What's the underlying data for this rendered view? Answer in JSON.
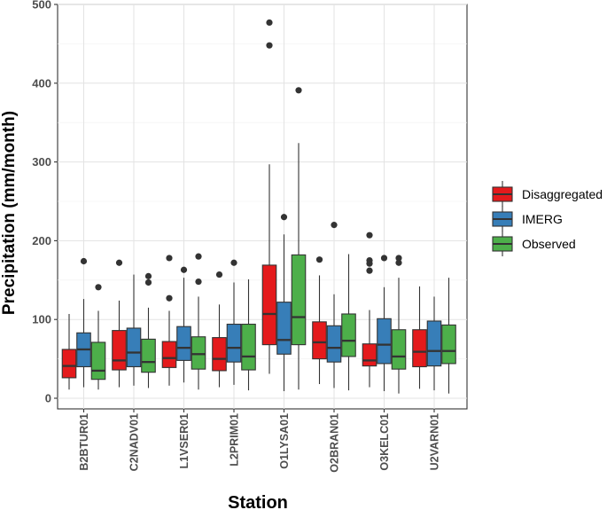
{
  "chart_data": {
    "type": "boxplot",
    "xlabel": "Station",
    "ylabel": "Precipitation (mm/month)",
    "ylim": [
      0,
      500
    ],
    "yticks": [
      0,
      100,
      200,
      300,
      400,
      500
    ],
    "categories": [
      "B2BTUR01",
      "C2NADV01",
      "L1VSER01",
      "L2PRIM01",
      "O1LYSA01",
      "O2BRAN01",
      "O3KELC01",
      "U2VARN01"
    ],
    "legend_position": "right",
    "series": [
      {
        "name": "Disaggregated",
        "color": "#e41a1c",
        "boxes": [
          {
            "low": 11,
            "q1": 26,
            "median": 41,
            "q3": 62,
            "high": 107,
            "outliers": []
          },
          {
            "low": 14,
            "q1": 36,
            "median": 48,
            "q3": 86,
            "high": 124,
            "outliers": [
              172
            ]
          },
          {
            "low": 16,
            "q1": 39,
            "median": 51,
            "q3": 72,
            "high": 111,
            "outliers": [
              127,
              178
            ]
          },
          {
            "low": 14,
            "q1": 35,
            "median": 50,
            "q3": 77,
            "high": 119,
            "outliers": [
              157
            ]
          },
          {
            "low": 31,
            "q1": 68,
            "median": 107,
            "q3": 169,
            "high": 297,
            "outliers": [
              448,
              477
            ]
          },
          {
            "low": 18,
            "q1": 50,
            "median": 71,
            "q3": 97,
            "high": 156,
            "outliers": [
              176
            ]
          },
          {
            "low": 14,
            "q1": 41,
            "median": 48,
            "q3": 69,
            "high": 112,
            "outliers": [
              162,
              171,
              175,
              207
            ]
          },
          {
            "low": 12,
            "q1": 40,
            "median": 59,
            "q3": 87,
            "high": 142,
            "outliers": []
          }
        ]
      },
      {
        "name": "IMERG",
        "color": "#377eb8",
        "boxes": [
          {
            "low": 14,
            "q1": 40,
            "median": 62,
            "q3": 83,
            "high": 126,
            "outliers": [
              174
            ]
          },
          {
            "low": 16,
            "q1": 40,
            "median": 58,
            "q3": 89,
            "high": 157,
            "outliers": []
          },
          {
            "low": 20,
            "q1": 48,
            "median": 64,
            "q3": 91,
            "high": 153,
            "outliers": [
              163
            ]
          },
          {
            "low": 17,
            "q1": 46,
            "median": 64,
            "q3": 94,
            "high": 147,
            "outliers": [
              172
            ]
          },
          {
            "low": 9,
            "q1": 56,
            "median": 74,
            "q3": 122,
            "high": 208,
            "outliers": [
              230
            ]
          },
          {
            "low": 13,
            "q1": 46,
            "median": 64,
            "q3": 92,
            "high": 132,
            "outliers": [
              220
            ]
          },
          {
            "low": 9,
            "q1": 44,
            "median": 68,
            "q3": 101,
            "high": 141,
            "outliers": [
              178
            ]
          },
          {
            "low": 10,
            "q1": 41,
            "median": 60,
            "q3": 98,
            "high": 129,
            "outliers": []
          }
        ]
      },
      {
        "name": "Observed",
        "color": "#4daf4a",
        "boxes": [
          {
            "low": 11,
            "q1": 24,
            "median": 35,
            "q3": 71,
            "high": 111,
            "outliers": [
              141
            ]
          },
          {
            "low": 13,
            "q1": 33,
            "median": 46,
            "q3": 75,
            "high": 115,
            "outliers": [
              147,
              155
            ]
          },
          {
            "low": 11,
            "q1": 37,
            "median": 56,
            "q3": 78,
            "high": 129,
            "outliers": [
              148,
              180
            ]
          },
          {
            "low": 10,
            "q1": 36,
            "median": 53,
            "q3": 94,
            "high": 151,
            "outliers": []
          },
          {
            "low": 11,
            "q1": 68,
            "median": 103,
            "q3": 182,
            "high": 324,
            "outliers": [
              391
            ]
          },
          {
            "low": 10,
            "q1": 53,
            "median": 73,
            "q3": 107,
            "high": 183,
            "outliers": []
          },
          {
            "low": 6,
            "q1": 37,
            "median": 53,
            "q3": 87,
            "high": 153,
            "outliers": [
              172,
              178
            ]
          },
          {
            "low": 6,
            "q1": 44,
            "median": 60,
            "q3": 93,
            "high": 153,
            "outliers": []
          }
        ]
      }
    ]
  }
}
